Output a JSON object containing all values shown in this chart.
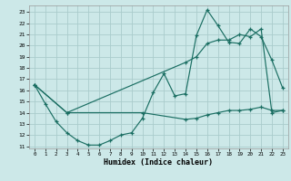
{
  "xlabel": "Humidex (Indice chaleur)",
  "background_color": "#cce8e8",
  "grid_color": "#aacccc",
  "line_color": "#1a6e62",
  "xlim": [
    -0.5,
    23.5
  ],
  "ylim": [
    10.8,
    23.6
  ],
  "yticks": [
    11,
    12,
    13,
    14,
    15,
    16,
    17,
    18,
    19,
    20,
    21,
    22,
    23
  ],
  "xticks": [
    0,
    1,
    2,
    3,
    4,
    5,
    6,
    7,
    8,
    9,
    10,
    11,
    12,
    13,
    14,
    15,
    16,
    17,
    18,
    19,
    20,
    21,
    22,
    23
  ],
  "line1_x": [
    0,
    1,
    2,
    3,
    4,
    5,
    6,
    7,
    8,
    9,
    10,
    11,
    12,
    13,
    14,
    15,
    16,
    17,
    18,
    19,
    20,
    21,
    22,
    23
  ],
  "line1_y": [
    16.5,
    14.8,
    13.2,
    12.2,
    11.5,
    11.1,
    11.1,
    11.5,
    12.0,
    12.2,
    13.5,
    15.8,
    17.5,
    15.5,
    15.7,
    20.9,
    23.2,
    21.8,
    20.3,
    20.2,
    21.5,
    20.8,
    18.7,
    16.2
  ],
  "line2_x": [
    0,
    3,
    14,
    15,
    16,
    17,
    18,
    19,
    20,
    21,
    22,
    23
  ],
  "line2_y": [
    16.5,
    14.0,
    18.5,
    19.0,
    20.2,
    20.5,
    20.5,
    21.0,
    20.8,
    21.5,
    14.0,
    14.2
  ],
  "line3_x": [
    0,
    3,
    10,
    14,
    15,
    16,
    17,
    18,
    19,
    20,
    21,
    22,
    23
  ],
  "line3_y": [
    16.5,
    14.0,
    14.0,
    13.4,
    13.5,
    13.8,
    14.0,
    14.2,
    14.2,
    14.3,
    14.5,
    14.2,
    14.2
  ]
}
